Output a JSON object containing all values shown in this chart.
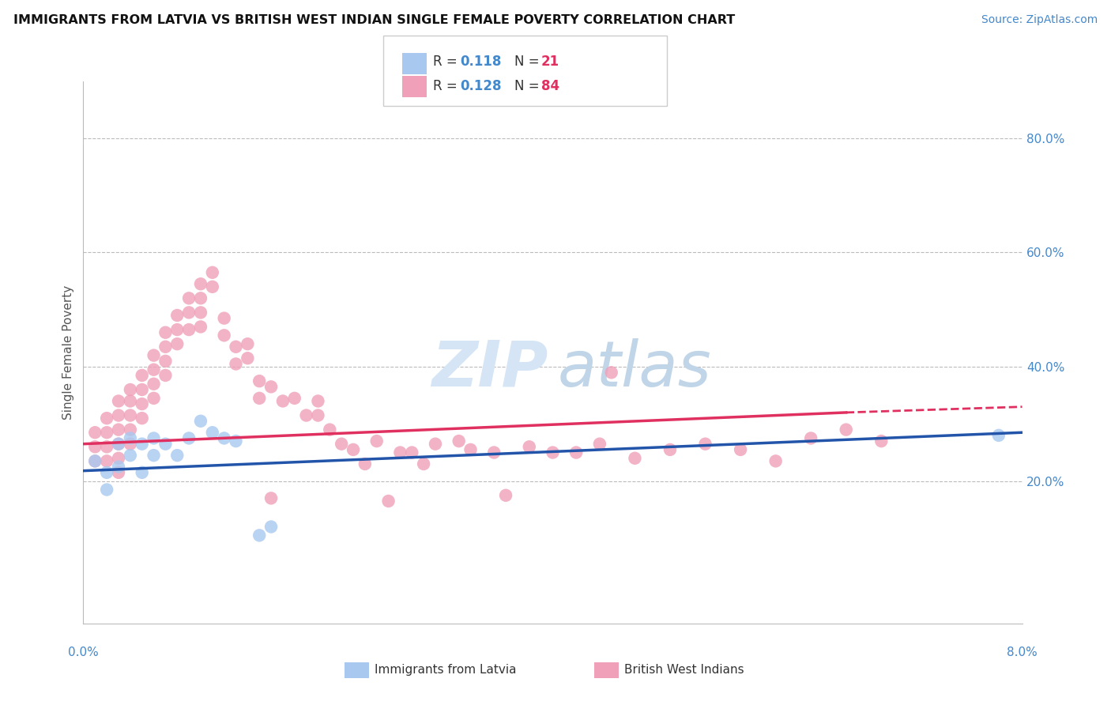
{
  "title": "IMMIGRANTS FROM LATVIA VS BRITISH WEST INDIAN SINGLE FEMALE POVERTY CORRELATION CHART",
  "source": "Source: ZipAtlas.com",
  "ylabel": "Single Female Poverty",
  "xlim": [
    0.0,
    0.08
  ],
  "ylim": [
    -0.05,
    0.9
  ],
  "blue_color": "#A8C8F0",
  "pink_color": "#F0A0B8",
  "blue_line_color": "#2255AA",
  "pink_line_color": "#E03060",
  "background_color": "#FFFFFF",
  "grid_color": "#BBBBBB",
  "latvia_x": [
    0.001,
    0.002,
    0.002,
    0.003,
    0.003,
    0.004,
    0.004,
    0.005,
    0.005,
    0.006,
    0.006,
    0.007,
    0.008,
    0.009,
    0.01,
    0.011,
    0.012,
    0.013,
    0.015,
    0.016,
    0.078
  ],
  "latvia_y": [
    0.235,
    0.215,
    0.185,
    0.265,
    0.225,
    0.275,
    0.245,
    0.265,
    0.215,
    0.275,
    0.245,
    0.265,
    0.245,
    0.275,
    0.305,
    0.285,
    0.275,
    0.27,
    0.105,
    0.12,
    0.28
  ],
  "bwi_x": [
    0.001,
    0.001,
    0.001,
    0.002,
    0.002,
    0.002,
    0.002,
    0.003,
    0.003,
    0.003,
    0.003,
    0.003,
    0.003,
    0.004,
    0.004,
    0.004,
    0.004,
    0.004,
    0.005,
    0.005,
    0.005,
    0.005,
    0.006,
    0.006,
    0.006,
    0.006,
    0.007,
    0.007,
    0.007,
    0.007,
    0.008,
    0.008,
    0.008,
    0.009,
    0.009,
    0.009,
    0.01,
    0.01,
    0.01,
    0.01,
    0.011,
    0.011,
    0.012,
    0.012,
    0.013,
    0.013,
    0.014,
    0.014,
    0.015,
    0.015,
    0.016,
    0.017,
    0.018,
    0.019,
    0.02,
    0.02,
    0.021,
    0.022,
    0.023,
    0.024,
    0.025,
    0.027,
    0.028,
    0.029,
    0.03,
    0.032,
    0.033,
    0.035,
    0.038,
    0.04,
    0.042,
    0.044,
    0.047,
    0.05,
    0.053,
    0.056,
    0.059,
    0.062,
    0.065,
    0.068,
    0.045,
    0.036,
    0.026,
    0.016
  ],
  "bwi_y": [
    0.285,
    0.26,
    0.235,
    0.31,
    0.285,
    0.26,
    0.235,
    0.34,
    0.315,
    0.29,
    0.265,
    0.24,
    0.215,
    0.36,
    0.34,
    0.315,
    0.29,
    0.265,
    0.385,
    0.36,
    0.335,
    0.31,
    0.42,
    0.395,
    0.37,
    0.345,
    0.46,
    0.435,
    0.41,
    0.385,
    0.49,
    0.465,
    0.44,
    0.52,
    0.495,
    0.465,
    0.545,
    0.52,
    0.495,
    0.47,
    0.565,
    0.54,
    0.485,
    0.455,
    0.435,
    0.405,
    0.44,
    0.415,
    0.375,
    0.345,
    0.365,
    0.34,
    0.345,
    0.315,
    0.34,
    0.315,
    0.29,
    0.265,
    0.255,
    0.23,
    0.27,
    0.25,
    0.25,
    0.23,
    0.265,
    0.27,
    0.255,
    0.25,
    0.26,
    0.25,
    0.25,
    0.265,
    0.24,
    0.255,
    0.265,
    0.255,
    0.235,
    0.275,
    0.29,
    0.27,
    0.39,
    0.175,
    0.165,
    0.17
  ],
  "trend_blue_x0": 0.0,
  "trend_blue_x1": 0.08,
  "trend_blue_y0": 0.218,
  "trend_blue_y1": 0.285,
  "trend_pink_x0": 0.0,
  "trend_pink_solid_x1": 0.065,
  "trend_pink_dash_x1": 0.08,
  "trend_pink_y0": 0.265,
  "trend_pink_y1": 0.32,
  "trend_pink_y2": 0.33
}
